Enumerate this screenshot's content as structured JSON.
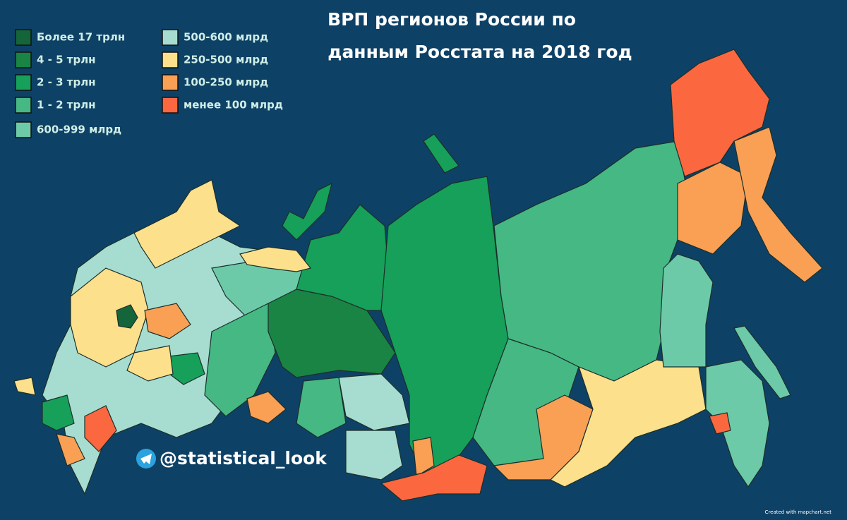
{
  "title": [
    "ВРП регионов России по",
    "данным Росстата на 2018 год"
  ],
  "legend": [
    {
      "label": "Более 17 трлн",
      "color": "#15653a"
    },
    {
      "label": "4 - 5 трлн",
      "color": "#1a8444"
    },
    {
      "label": "2 - 3 трлн",
      "color": "#16a05a"
    },
    {
      "label": "1 - 2 трлн",
      "color": "#45b884"
    },
    {
      "label": "600-999 млрд",
      "color": "#6dcaa9"
    },
    {
      "label": "500-600 млрд",
      "color": "#a7ddd0"
    },
    {
      "label": "250-500 млрд",
      "color": "#fde08c"
    },
    {
      "label": "100-250 млрд",
      "color": "#f9a055"
    },
    {
      "label": "менее 100 млрд",
      "color": "#fb6840"
    }
  ],
  "handle": "@statistical_look",
  "credit": "Created with mapchart.net"
}
